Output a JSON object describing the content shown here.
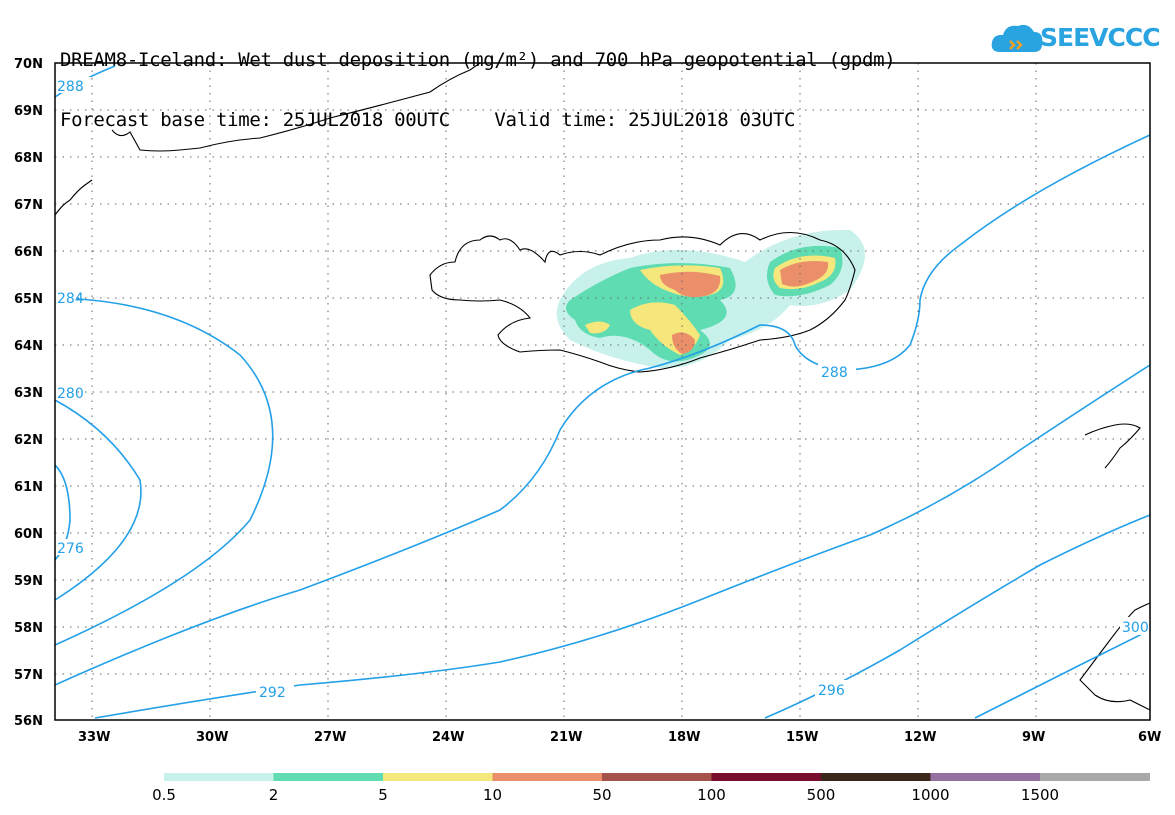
{
  "title": {
    "line1": "DREAM8-Iceland: Wet dust deposition (mg/m²) and 700 hPa geopotential (gpdm)",
    "line2": "Forecast base time: 25JUL2018 00UTC    Valid time: 25JUL2018 03UTC"
  },
  "logo": {
    "text": "SEEVCCC",
    "icon": "cloud-icon",
    "color": "#2aa4e0"
  },
  "map": {
    "lat_labels": [
      "70N",
      "69N",
      "68N",
      "67N",
      "66N",
      "65N",
      "64N",
      "63N",
      "62N",
      "61N",
      "60N",
      "59N",
      "58N",
      "57N",
      "56N"
    ],
    "lon_labels": [
      "33W",
      "30W",
      "27W",
      "24W",
      "21W",
      "18W",
      "15W",
      "12W",
      "9W",
      "6W"
    ],
    "contour_labels": [
      "288",
      "284",
      "280",
      "276",
      "288",
      "292",
      "296",
      "300"
    ],
    "contour_color": "#23a0e8"
  },
  "colorbar": {
    "labels": [
      "0.5",
      "2",
      "5",
      "10",
      "50",
      "100",
      "500",
      "1000",
      "1500"
    ],
    "colors": [
      "#c8f1ec",
      "#5fdcb2",
      "#f5e77c",
      "#ea8f6a",
      "#a4524a",
      "#7a0e2f",
      "#3c271d",
      "#9370a0",
      "#a8a8a8"
    ]
  }
}
